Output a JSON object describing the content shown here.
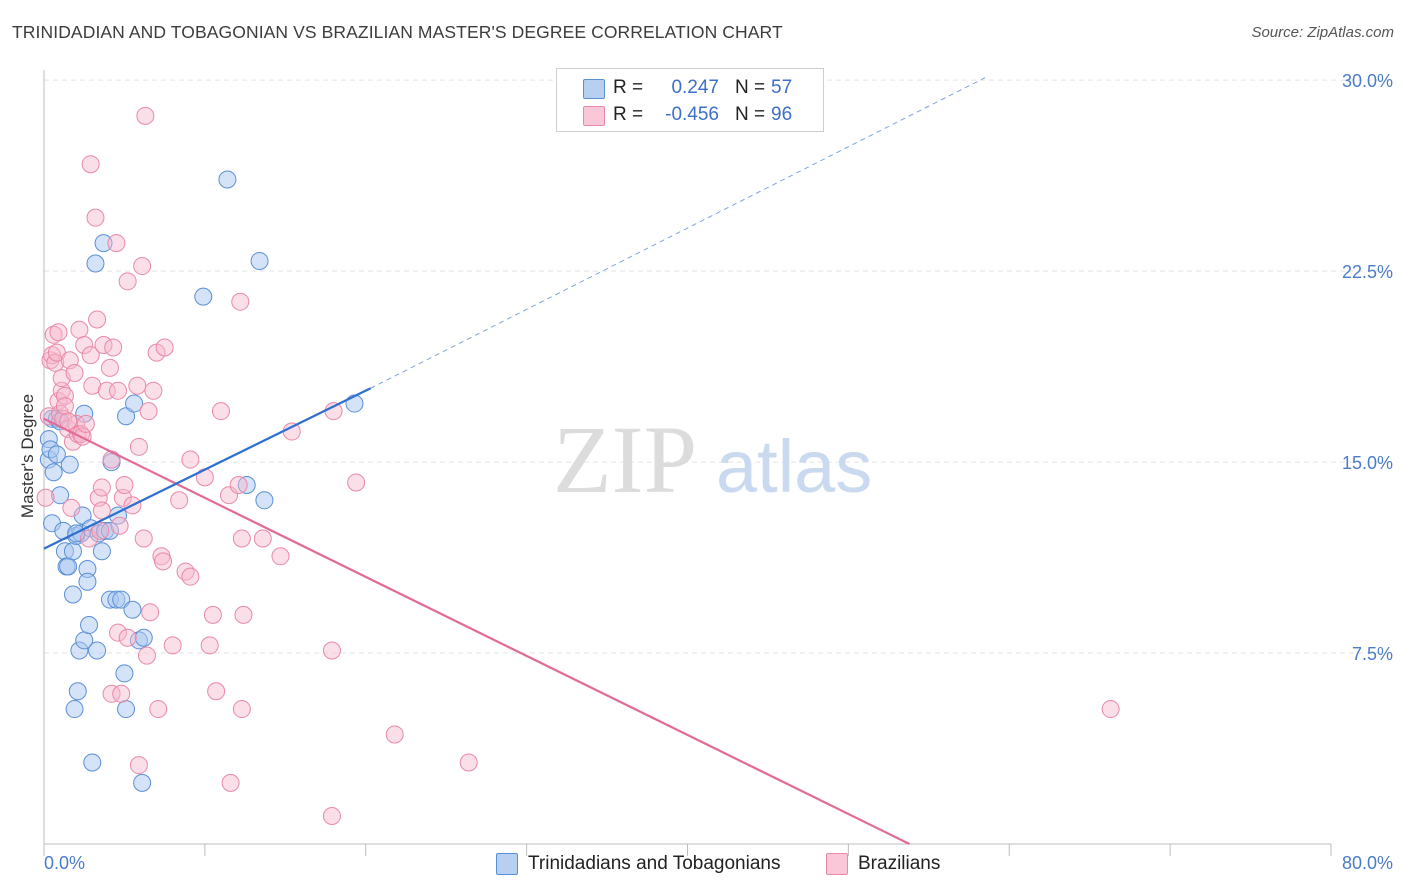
{
  "header": {
    "title": "TRINIDADIAN AND TOBAGONIAN VS BRAZILIAN MASTER'S DEGREE CORRELATION CHART",
    "source": "Source: ZipAtlas.com"
  },
  "watermark": {
    "zip": "ZIP",
    "atlas": "atlas"
  },
  "legend": {
    "rows": [
      {
        "r_label": "R =",
        "r_value": "0.247",
        "n_label": "N =",
        "n_value": "57"
      },
      {
        "r_label": "R =",
        "r_value": "-0.456",
        "n_label": "N =",
        "n_value": "96"
      }
    ]
  },
  "bottom_legend": {
    "items": [
      {
        "label": "Trinidadians and Tobagonians"
      },
      {
        "label": "Brazilians"
      }
    ]
  },
  "colors": {
    "blue_fill": "#aac8ef",
    "blue_stroke": "#5b8fd6",
    "blue_line": "#2f6fcf",
    "pink_fill": "#f6b9cd",
    "pink_stroke": "#e889a8",
    "pink_line": "#e26a97",
    "grid": "#e3e3e3",
    "tick_text": "#4a7cc7"
  },
  "chart_data": {
    "type": "scatter",
    "title": "TRINIDADIAN AND TOBAGONIAN VS BRAZILIAN MASTER'S DEGREE CORRELATION CHART",
    "xlabel": "",
    "ylabel": "Master's Degree",
    "xlim": [
      0,
      80
    ],
    "ylim": [
      0,
      30.4
    ],
    "x_ticks_labeled": [
      "0.0%",
      "80.0%"
    ],
    "y_ticks": [
      {
        "value": 7.5,
        "label": "7.5%"
      },
      {
        "value": 15.0,
        "label": "15.0%"
      },
      {
        "value": 22.5,
        "label": "22.5%"
      },
      {
        "value": 30.0,
        "label": "30.0%"
      }
    ],
    "grid": "horizontal dashed",
    "series": [
      {
        "name": "Trinidadians and Tobagonians",
        "points": [
          [
            0.3,
            15.9
          ],
          [
            0.3,
            15.1
          ],
          [
            0.4,
            15.5
          ],
          [
            0.5,
            16.7
          ],
          [
            0.5,
            12.6
          ],
          [
            0.6,
            14.6
          ],
          [
            0.8,
            16.7
          ],
          [
            1.0,
            16.6
          ],
          [
            1.0,
            13.7
          ],
          [
            1.2,
            12.3
          ],
          [
            1.3,
            11.5
          ],
          [
            1.4,
            10.9
          ],
          [
            1.5,
            10.9
          ],
          [
            1.6,
            14.9
          ],
          [
            1.8,
            11.5
          ],
          [
            1.8,
            9.8
          ],
          [
            1.9,
            5.3
          ],
          [
            2.0,
            12.1
          ],
          [
            2.1,
            6.0
          ],
          [
            2.2,
            7.6
          ],
          [
            2.3,
            12.2
          ],
          [
            2.4,
            12.9
          ],
          [
            2.5,
            16.9
          ],
          [
            2.5,
            8.0
          ],
          [
            2.7,
            10.8
          ],
          [
            2.7,
            10.3
          ],
          [
            2.8,
            8.6
          ],
          [
            2.9,
            12.4
          ],
          [
            3.0,
            3.2
          ],
          [
            3.2,
            22.8
          ],
          [
            3.3,
            7.6
          ],
          [
            3.4,
            12.2
          ],
          [
            3.6,
            11.5
          ],
          [
            3.7,
            23.6
          ],
          [
            3.8,
            12.3
          ],
          [
            4.1,
            9.6
          ],
          [
            4.1,
            12.3
          ],
          [
            4.2,
            15.0
          ],
          [
            4.5,
            9.6
          ],
          [
            4.6,
            12.9
          ],
          [
            4.8,
            9.6
          ],
          [
            5.0,
            6.7
          ],
          [
            5.1,
            16.8
          ],
          [
            5.1,
            5.3
          ],
          [
            5.5,
            9.2
          ],
          [
            5.6,
            17.3
          ],
          [
            5.9,
            8.0
          ],
          [
            6.1,
            2.4
          ],
          [
            6.2,
            8.1
          ],
          [
            9.9,
            21.5
          ],
          [
            11.4,
            26.1
          ],
          [
            12.6,
            14.1
          ],
          [
            13.4,
            22.9
          ],
          [
            13.7,
            13.5
          ],
          [
            19.3,
            17.3
          ],
          [
            0.8,
            15.3
          ],
          [
            2.0,
            12.2
          ]
        ]
      },
      {
        "name": "Brazilians",
        "points": [
          [
            0.1,
            13.6
          ],
          [
            0.3,
            16.8
          ],
          [
            0.4,
            19.0
          ],
          [
            0.5,
            19.2
          ],
          [
            0.6,
            20.0
          ],
          [
            0.7,
            18.9
          ],
          [
            0.8,
            19.3
          ],
          [
            0.9,
            17.4
          ],
          [
            0.9,
            20.1
          ],
          [
            1.0,
            16.9
          ],
          [
            1.1,
            17.8
          ],
          [
            1.1,
            18.3
          ],
          [
            1.2,
            16.7
          ],
          [
            1.3,
            17.6
          ],
          [
            1.3,
            17.2
          ],
          [
            1.5,
            16.3
          ],
          [
            1.6,
            19.0
          ],
          [
            1.7,
            13.2
          ],
          [
            1.8,
            15.8
          ],
          [
            1.9,
            18.5
          ],
          [
            2.0,
            16.5
          ],
          [
            2.1,
            16.1
          ],
          [
            2.2,
            20.2
          ],
          [
            2.3,
            16.1
          ],
          [
            2.4,
            16.0
          ],
          [
            2.5,
            19.6
          ],
          [
            2.6,
            16.5
          ],
          [
            2.8,
            12.0
          ],
          [
            2.9,
            19.2
          ],
          [
            3.0,
            18.0
          ],
          [
            3.2,
            24.6
          ],
          [
            3.3,
            20.6
          ],
          [
            3.4,
            13.6
          ],
          [
            3.5,
            12.3
          ],
          [
            3.6,
            14.0
          ],
          [
            3.6,
            13.1
          ],
          [
            3.7,
            19.6
          ],
          [
            3.9,
            17.8
          ],
          [
            4.1,
            18.7
          ],
          [
            4.2,
            15.1
          ],
          [
            4.2,
            5.9
          ],
          [
            4.3,
            19.5
          ],
          [
            4.5,
            23.6
          ],
          [
            4.6,
            8.3
          ],
          [
            4.6,
            17.8
          ],
          [
            4.7,
            12.5
          ],
          [
            4.8,
            5.9
          ],
          [
            4.9,
            13.6
          ],
          [
            5.0,
            14.1
          ],
          [
            5.2,
            8.1
          ],
          [
            5.2,
            22.1
          ],
          [
            5.5,
            13.3
          ],
          [
            5.8,
            18.0
          ],
          [
            5.9,
            3.1
          ],
          [
            5.9,
            15.6
          ],
          [
            6.1,
            22.7
          ],
          [
            6.2,
            12.0
          ],
          [
            6.4,
            7.4
          ],
          [
            6.5,
            17.0
          ],
          [
            6.6,
            9.1
          ],
          [
            6.8,
            17.8
          ],
          [
            7.0,
            19.3
          ],
          [
            7.1,
            5.3
          ],
          [
            7.3,
            11.3
          ],
          [
            7.4,
            11.1
          ],
          [
            7.5,
            19.5
          ],
          [
            8.0,
            7.8
          ],
          [
            8.4,
            13.5
          ],
          [
            8.8,
            10.7
          ],
          [
            9.1,
            10.5
          ],
          [
            9.1,
            15.1
          ],
          [
            10.0,
            14.4
          ],
          [
            10.3,
            7.8
          ],
          [
            10.5,
            9.0
          ],
          [
            10.7,
            6.0
          ],
          [
            11.0,
            17.0
          ],
          [
            11.5,
            13.7
          ],
          [
            11.6,
            2.4
          ],
          [
            12.1,
            14.1
          ],
          [
            12.2,
            21.3
          ],
          [
            12.3,
            12.0
          ],
          [
            12.3,
            5.3
          ],
          [
            12.4,
            9.0
          ],
          [
            13.6,
            12.0
          ],
          [
            14.7,
            11.3
          ],
          [
            15.4,
            16.2
          ],
          [
            17.9,
            1.1
          ],
          [
            17.9,
            7.6
          ],
          [
            18.0,
            17.0
          ],
          [
            19.4,
            14.2
          ],
          [
            21.8,
            4.3
          ],
          [
            26.4,
            3.2
          ],
          [
            66.3,
            5.3
          ],
          [
            6.3,
            28.6
          ],
          [
            2.9,
            26.7
          ],
          [
            1.5,
            16.6
          ]
        ]
      }
    ],
    "trendlines": [
      {
        "series": "Trinidadians and Tobagonians",
        "solid": [
          [
            0.0,
            11.6
          ],
          [
            20.3,
            17.9
          ]
        ],
        "dashed": [
          [
            20.3,
            17.9
          ],
          [
            58.5,
            30.1
          ]
        ]
      },
      {
        "series": "Brazilians",
        "solid": [
          [
            0.0,
            16.7
          ],
          [
            53.8,
            0.0
          ]
        ]
      }
    ]
  }
}
